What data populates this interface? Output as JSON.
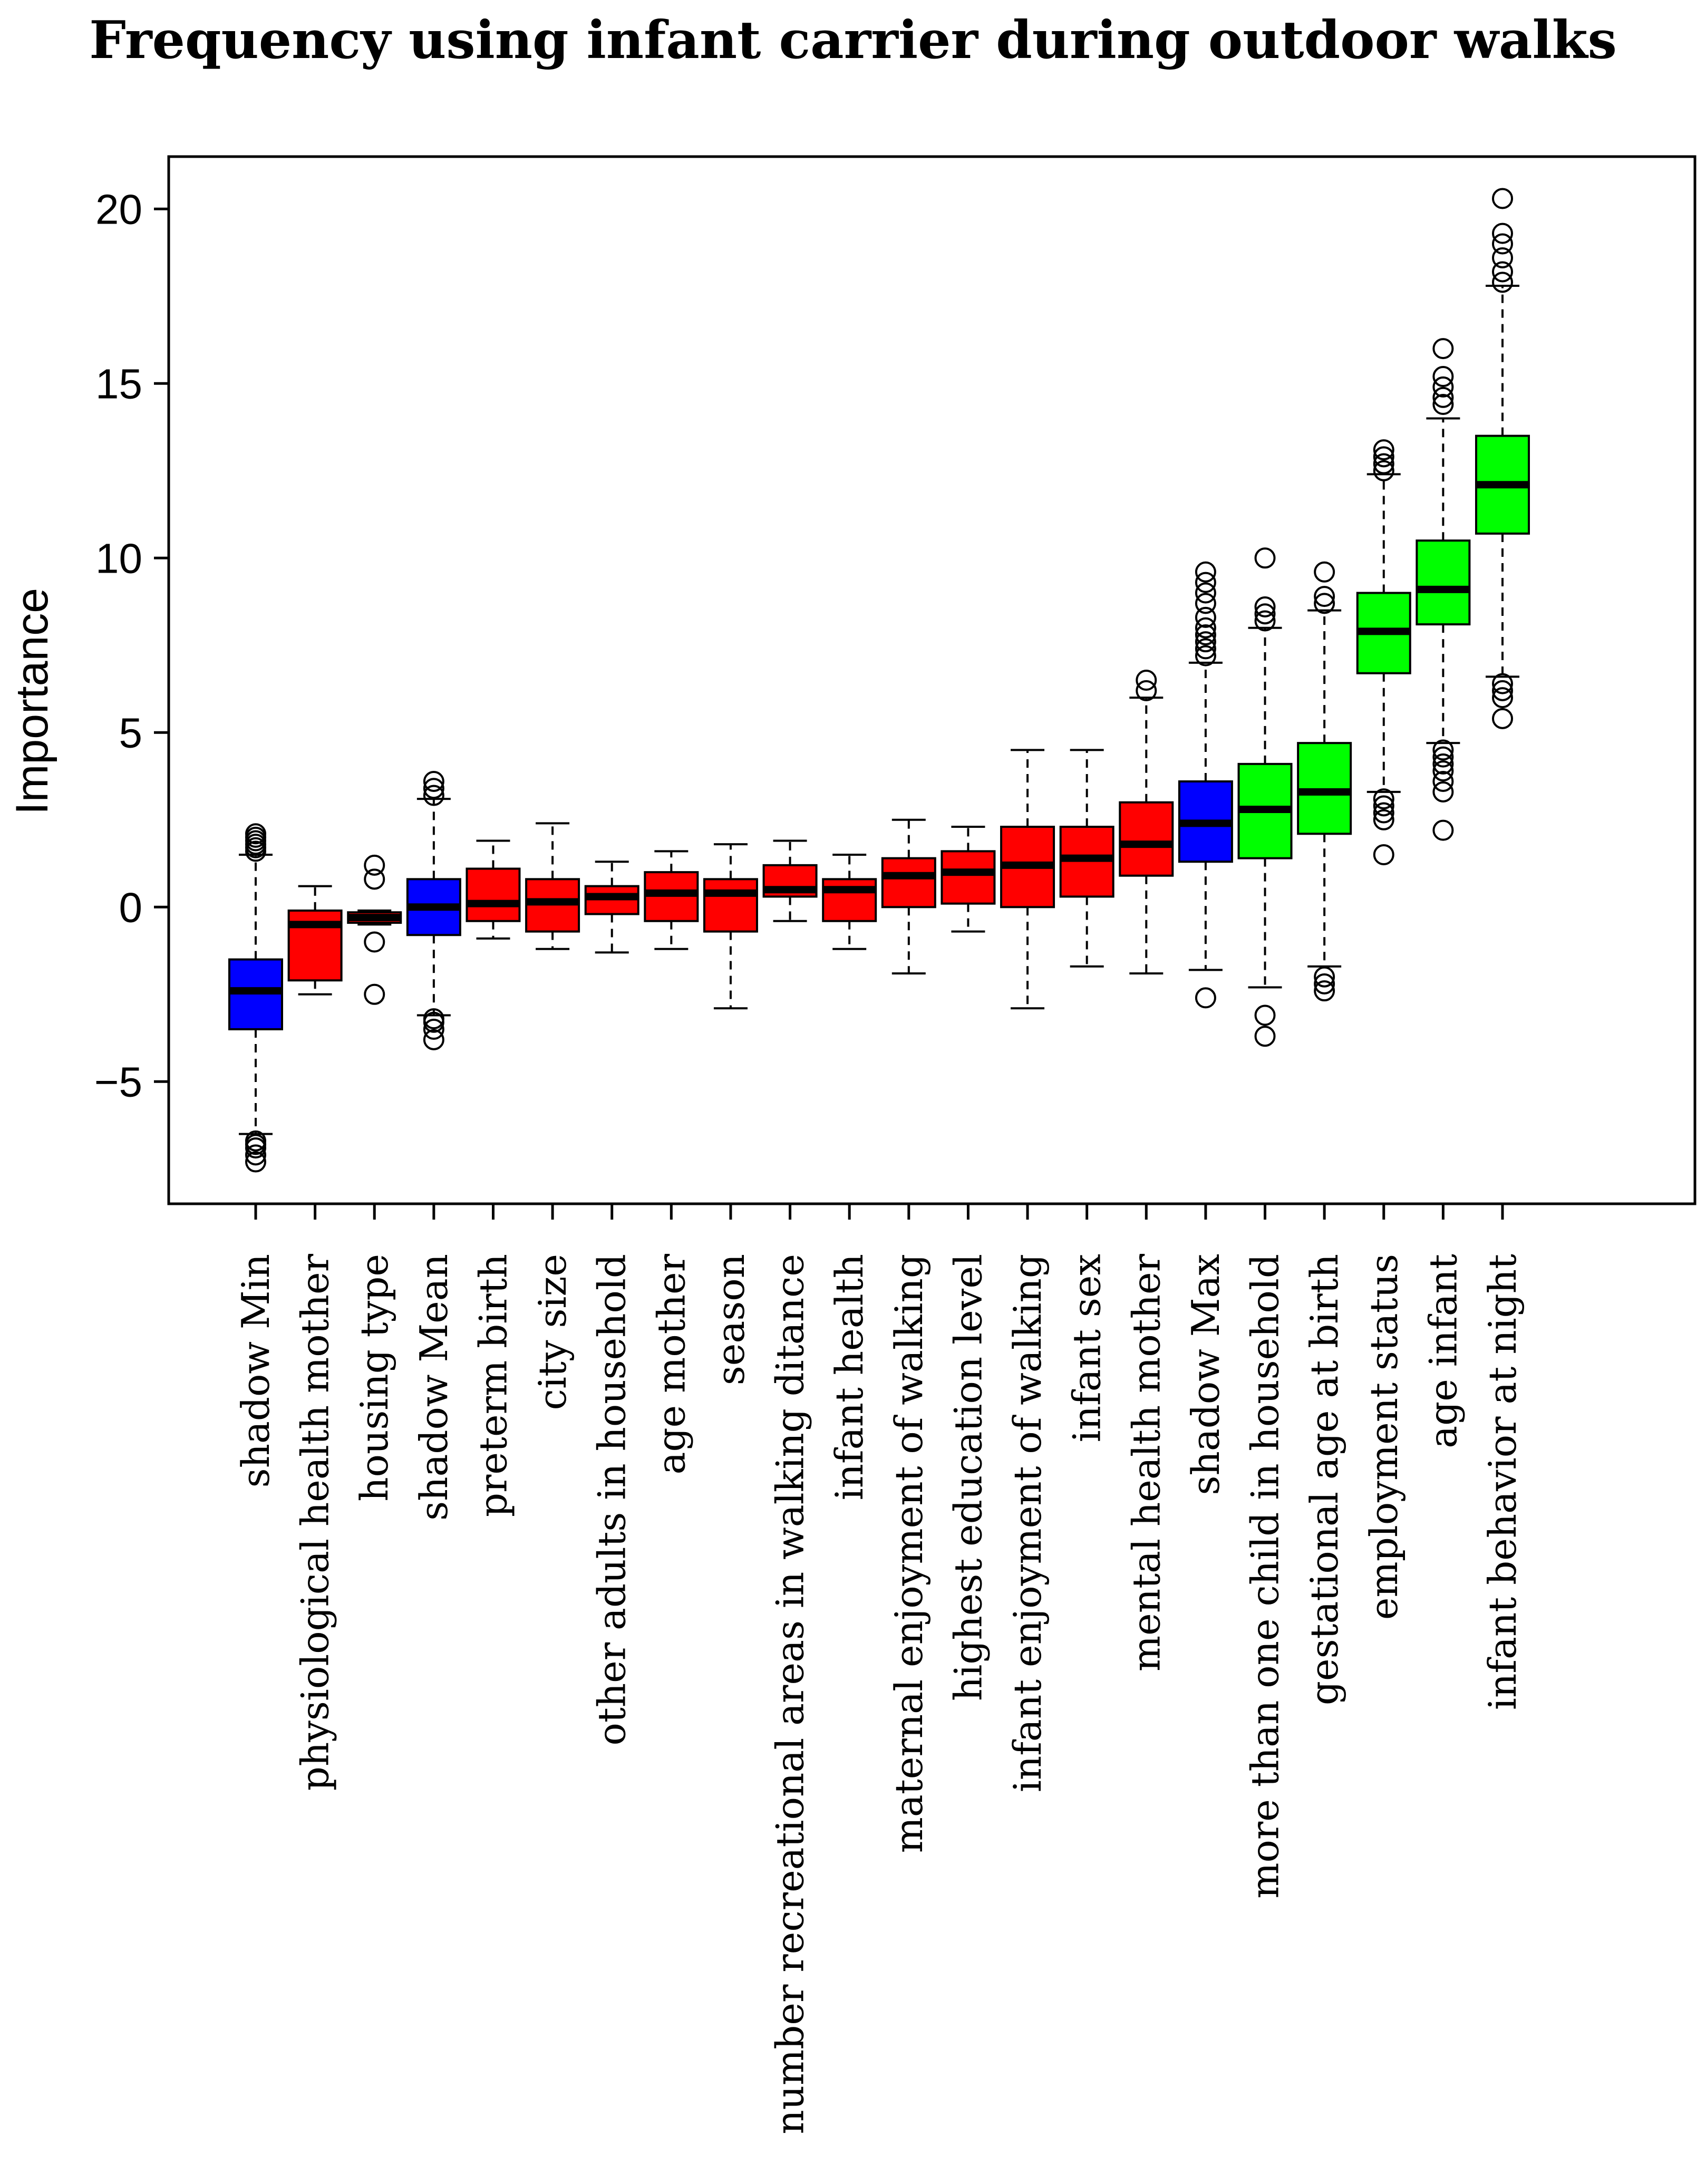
{
  "chart_data": {
    "type": "boxplot",
    "title": "Frequency using infant carrier during outdoor walks",
    "xlabel": "",
    "ylabel": "Importance",
    "ylim": [
      -8.5,
      21.5
    ],
    "yticks": [
      -5,
      0,
      5,
      10,
      15,
      20
    ],
    "ytick_labels": [
      "−5",
      "0",
      "5",
      "10",
      "15",
      "20"
    ],
    "colors": {
      "shadow": "#0000ff",
      "rejected": "#ff0000",
      "confirmed": "#00ff00",
      "median": "#000000",
      "border": "#000000"
    },
    "series": [
      {
        "name": "shadow Min",
        "status": "shadow",
        "whisker_low": -6.5,
        "q1": -3.5,
        "median": -2.4,
        "q3": -1.5,
        "whisker_high": 1.5,
        "outliers": [
          -7.3,
          -7.1,
          -6.9,
          -6.8,
          -6.7,
          1.6,
          1.7,
          1.8,
          1.9,
          2.0,
          2.1
        ]
      },
      {
        "name": "physiological health mother",
        "status": "rejected",
        "whisker_low": -2.5,
        "q1": -2.1,
        "median": -0.5,
        "q3": -0.1,
        "whisker_high": 0.6,
        "outliers": []
      },
      {
        "name": "housing type",
        "status": "rejected",
        "whisker_low": -0.5,
        "q1": -0.45,
        "median": -0.3,
        "q3": -0.15,
        "whisker_high": -0.1,
        "outliers": [
          -2.5,
          -1.0,
          0.8,
          1.2
        ]
      },
      {
        "name": "shadow Mean",
        "status": "shadow",
        "whisker_low": -3.1,
        "q1": -0.8,
        "median": 0.0,
        "q3": 0.8,
        "whisker_high": 3.1,
        "outliers": [
          -3.8,
          -3.5,
          -3.3,
          -3.2,
          3.2,
          3.4,
          3.6
        ]
      },
      {
        "name": "preterm birth",
        "status": "rejected",
        "whisker_low": -0.9,
        "q1": -0.4,
        "median": 0.1,
        "q3": 1.1,
        "whisker_high": 1.9,
        "outliers": []
      },
      {
        "name": "city size",
        "status": "rejected",
        "whisker_low": -1.2,
        "q1": -0.7,
        "median": 0.15,
        "q3": 0.8,
        "whisker_high": 2.4,
        "outliers": []
      },
      {
        "name": "other adults in household",
        "status": "rejected",
        "whisker_low": -1.3,
        "q1": -0.2,
        "median": 0.3,
        "q3": 0.6,
        "whisker_high": 1.3,
        "outliers": []
      },
      {
        "name": "age mother",
        "status": "rejected",
        "whisker_low": -1.2,
        "q1": -0.4,
        "median": 0.4,
        "q3": 1.0,
        "whisker_high": 1.6,
        "outliers": []
      },
      {
        "name": "season",
        "status": "rejected",
        "whisker_low": -2.9,
        "q1": -0.7,
        "median": 0.4,
        "q3": 0.8,
        "whisker_high": 1.8,
        "outliers": []
      },
      {
        "name": "number recreational areas in walking ditance",
        "status": "rejected",
        "whisker_low": -0.4,
        "q1": 0.3,
        "median": 0.5,
        "q3": 1.2,
        "whisker_high": 1.9,
        "outliers": []
      },
      {
        "name": "infant health",
        "status": "rejected",
        "whisker_low": -1.2,
        "q1": -0.4,
        "median": 0.5,
        "q3": 0.8,
        "whisker_high": 1.5,
        "outliers": []
      },
      {
        "name": "maternal enjoyment of walking",
        "status": "rejected",
        "whisker_low": -1.9,
        "q1": 0.0,
        "median": 0.9,
        "q3": 1.4,
        "whisker_high": 2.5,
        "outliers": []
      },
      {
        "name": "highest education level",
        "status": "rejected",
        "whisker_low": -0.7,
        "q1": 0.1,
        "median": 1.0,
        "q3": 1.6,
        "whisker_high": 2.3,
        "outliers": []
      },
      {
        "name": "infant enjoyment of walking",
        "status": "rejected",
        "whisker_low": -2.9,
        "q1": 0.0,
        "median": 1.2,
        "q3": 2.3,
        "whisker_high": 4.5,
        "outliers": []
      },
      {
        "name": "infant sex",
        "status": "rejected",
        "whisker_low": -1.7,
        "q1": 0.3,
        "median": 1.4,
        "q3": 2.3,
        "whisker_high": 4.5,
        "outliers": []
      },
      {
        "name": "mental health mother",
        "status": "rejected",
        "whisker_low": -1.9,
        "q1": 0.9,
        "median": 1.8,
        "q3": 3.0,
        "whisker_high": 6.0,
        "outliers": [
          6.2,
          6.5
        ]
      },
      {
        "name": "shadow Max",
        "status": "shadow",
        "whisker_low": -1.8,
        "q1": 1.3,
        "median": 2.4,
        "q3": 3.6,
        "whisker_high": 7.0,
        "outliers": [
          -2.6,
          7.2,
          7.4,
          7.6,
          7.8,
          8.0,
          8.3,
          8.7,
          9.0,
          9.3,
          9.6
        ]
      },
      {
        "name": "more than one child in household",
        "status": "confirmed",
        "whisker_low": -2.3,
        "q1": 1.4,
        "median": 2.8,
        "q3": 4.1,
        "whisker_high": 8.0,
        "outliers": [
          -3.7,
          -3.1,
          8.2,
          8.4,
          8.6,
          10.0
        ]
      },
      {
        "name": "gestational age at birth",
        "status": "confirmed",
        "whisker_low": -1.7,
        "q1": 2.1,
        "median": 3.3,
        "q3": 4.7,
        "whisker_high": 8.5,
        "outliers": [
          -2.4,
          -2.2,
          -2.0,
          8.7,
          8.9,
          9.6
        ]
      },
      {
        "name": "employment status",
        "status": "confirmed",
        "whisker_low": 3.3,
        "q1": 6.7,
        "median": 7.9,
        "q3": 9.0,
        "whisker_high": 12.4,
        "outliers": [
          1.5,
          2.5,
          2.7,
          2.9,
          3.1,
          12.5,
          12.7,
          12.9,
          13.1
        ]
      },
      {
        "name": "age infant",
        "status": "confirmed",
        "whisker_low": 4.7,
        "q1": 8.1,
        "median": 9.1,
        "q3": 10.5,
        "whisker_high": 14.0,
        "outliers": [
          2.2,
          3.3,
          3.6,
          3.9,
          4.1,
          4.3,
          4.5,
          14.4,
          14.6,
          14.9,
          15.2,
          16.0
        ]
      },
      {
        "name": "infant behavior at night",
        "status": "confirmed",
        "whisker_low": 6.6,
        "q1": 10.7,
        "median": 12.1,
        "q3": 13.5,
        "whisker_high": 17.8,
        "outliers": [
          5.4,
          6.0,
          6.2,
          6.4,
          17.9,
          18.2,
          18.6,
          19.0,
          19.3,
          20.3
        ]
      }
    ]
  }
}
